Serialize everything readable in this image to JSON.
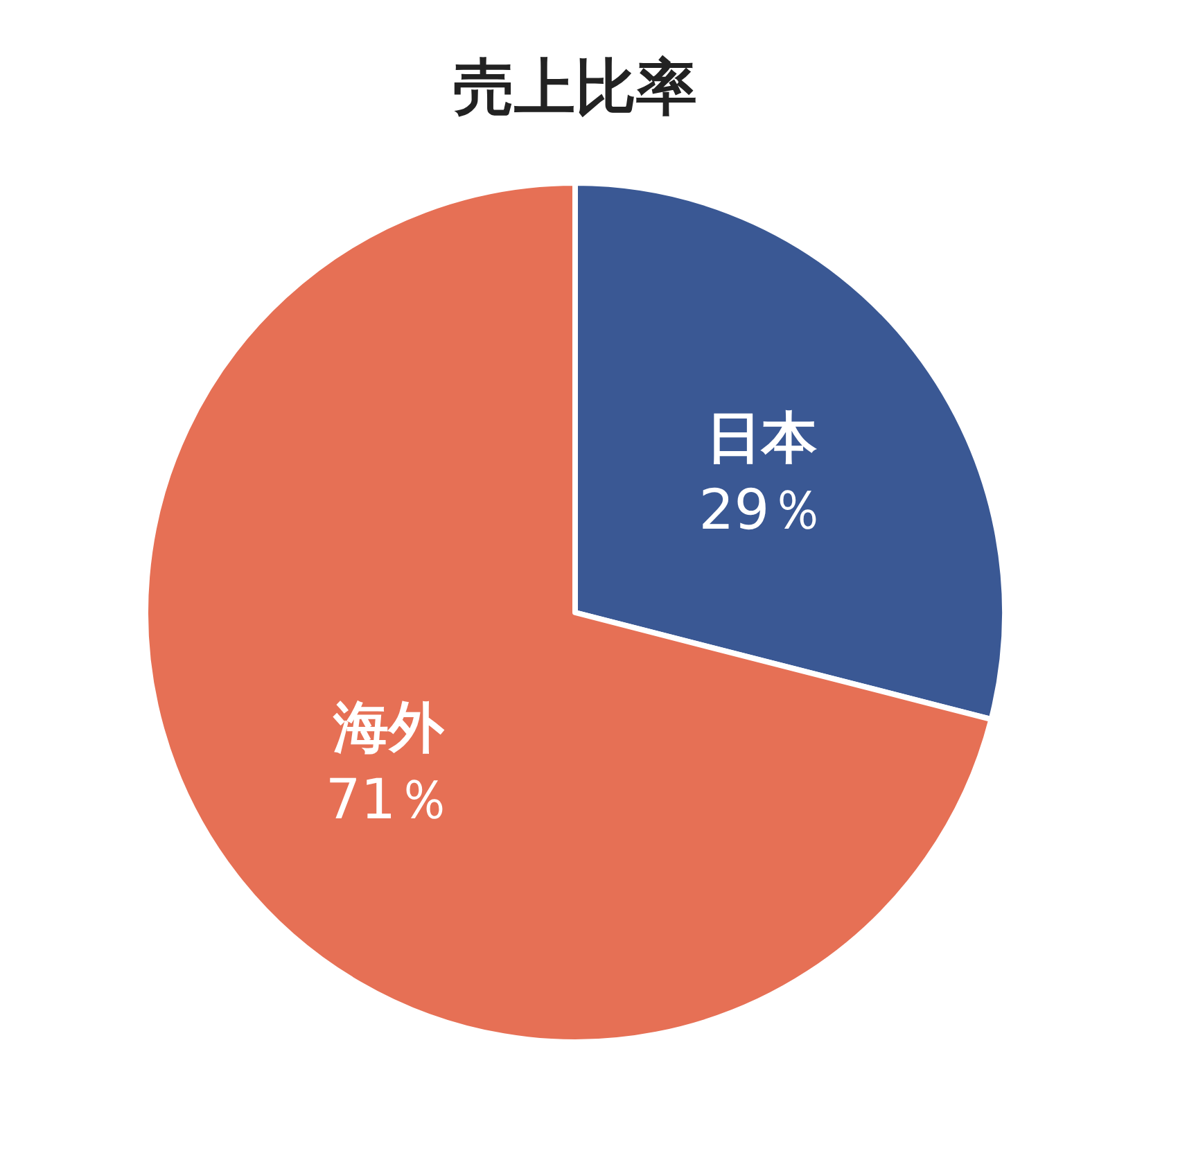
{
  "chart_data": {
    "type": "pie",
    "title": "売上比率",
    "categories": [
      "日本",
      "海外"
    ],
    "values": [
      29,
      71
    ],
    "colors": [
      "#3a5894",
      "#e67055"
    ],
    "value_labels": [
      "29％",
      "71％"
    ],
    "legend": false
  }
}
